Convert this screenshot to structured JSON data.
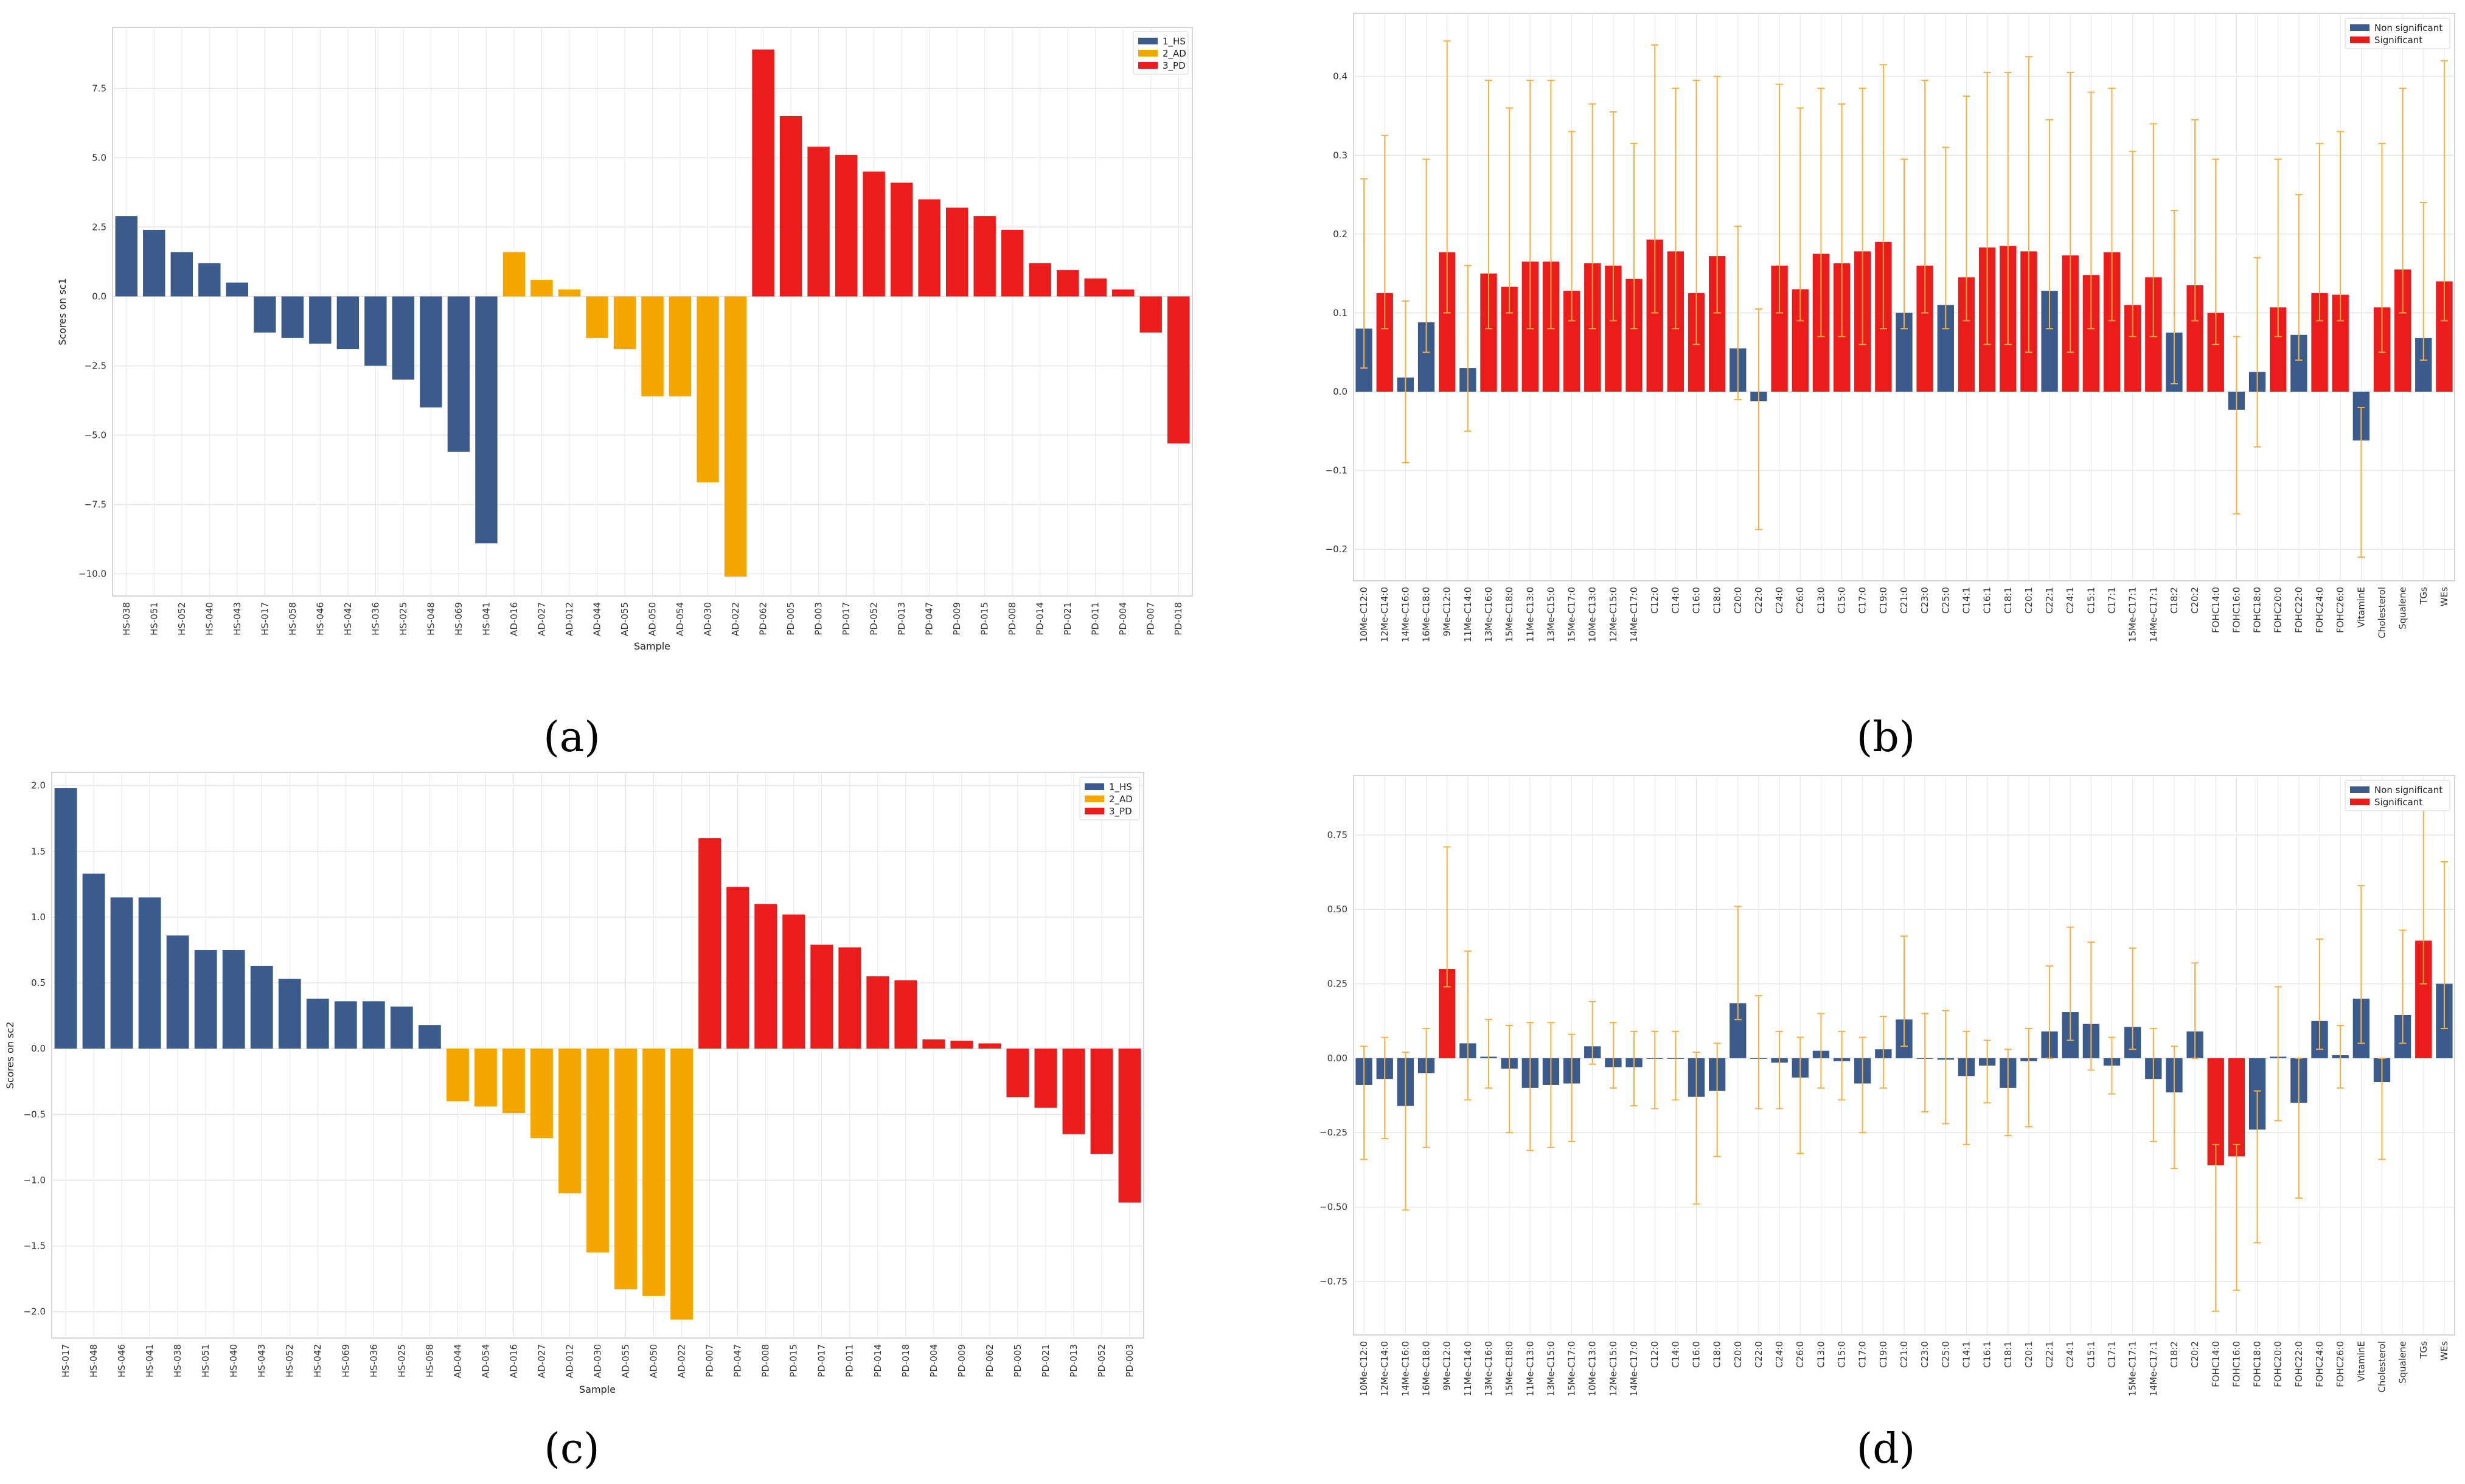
{
  "chart_data": [
    {
      "panel": "a",
      "caption": "(a)",
      "type": "bar",
      "xlabel": "Sample",
      "ylabel": "Scores on sc1",
      "ylim": [
        -10.8,
        9.7
      ],
      "yticks": [
        -10.0,
        -7.5,
        -5.0,
        -2.5,
        0.0,
        2.5,
        5.0,
        7.5
      ],
      "ytick_labels": [
        "−10.0",
        "−7.5",
        "−5.0",
        "−2.5",
        "0.0",
        "2.5",
        "5.0",
        "7.5"
      ],
      "legend": {
        "placement": "top-right",
        "entries": [
          {
            "label": "1_HS",
            "group": "HS"
          },
          {
            "label": "2_AD",
            "group": "AD"
          },
          {
            "label": "3_PD",
            "group": "PD"
          }
        ]
      },
      "categories": [
        "HS-038",
        "HS-051",
        "HS-052",
        "HS-040",
        "HS-043",
        "HS-017",
        "HS-058",
        "HS-046",
        "HS-042",
        "HS-036",
        "HS-025",
        "HS-048",
        "HS-069",
        "HS-041",
        "AD-016",
        "AD-027",
        "AD-012",
        "AD-044",
        "AD-055",
        "AD-050",
        "AD-054",
        "AD-030",
        "AD-022",
        "PD-062",
        "PD-005",
        "PD-003",
        "PD-017",
        "PD-052",
        "PD-013",
        "PD-047",
        "PD-009",
        "PD-015",
        "PD-008",
        "PD-014",
        "PD-021",
        "PD-011",
        "PD-004",
        "PD-007",
        "PD-018"
      ],
      "groups": [
        "HS",
        "HS",
        "HS",
        "HS",
        "HS",
        "HS",
        "HS",
        "HS",
        "HS",
        "HS",
        "HS",
        "HS",
        "HS",
        "HS",
        "AD",
        "AD",
        "AD",
        "AD",
        "AD",
        "AD",
        "AD",
        "AD",
        "AD",
        "PD",
        "PD",
        "PD",
        "PD",
        "PD",
        "PD",
        "PD",
        "PD",
        "PD",
        "PD",
        "PD",
        "PD",
        "PD",
        "PD",
        "PD",
        "PD"
      ],
      "values": [
        2.9,
        2.4,
        1.6,
        1.2,
        0.5,
        -1.3,
        -1.5,
        -1.7,
        -1.9,
        -2.5,
        -3.0,
        -4.0,
        -5.6,
        -8.9,
        1.6,
        0.6,
        0.25,
        -1.5,
        -1.9,
        -3.6,
        -3.6,
        -6.7,
        -10.1,
        8.9,
        6.5,
        5.4,
        5.1,
        4.5,
        4.1,
        3.5,
        3.2,
        2.9,
        2.4,
        1.2,
        0.95,
        0.65,
        0.25,
        -1.3,
        -5.3
      ]
    },
    {
      "panel": "b",
      "caption": "(b)",
      "type": "bar",
      "xlabel": "",
      "ylabel": "",
      "ylim": [
        -0.24,
        0.48
      ],
      "yticks": [
        -0.2,
        -0.1,
        0.0,
        0.1,
        0.2,
        0.3,
        0.4
      ],
      "ytick_labels": [
        "−0.2",
        "−0.1",
        "0.0",
        "0.1",
        "0.2",
        "0.3",
        "0.4"
      ],
      "legend": {
        "placement": "top-right",
        "entries": [
          {
            "label": "Non significant",
            "group": "N"
          },
          {
            "label": "Significant",
            "group": "S"
          }
        ]
      },
      "categories": [
        "10Me-C12:0",
        "12Me-C14:0",
        "14Me-C16:0",
        "16Me-C18:0",
        "9Me-C12:0",
        "11Me-C14:0",
        "13Me-C16:0",
        "15Me-C18:0",
        "11Me-C13:0",
        "13Me-C15:0",
        "15Me-C17:0",
        "10Me-C13:0",
        "12Me-C15:0",
        "14Me-C17:0",
        "C12:0",
        "C14:0",
        "C16:0",
        "C18:0",
        "C20:0",
        "C22:0",
        "C24:0",
        "C26:0",
        "C13:0",
        "C15:0",
        "C17:0",
        "C19:0",
        "C21:0",
        "C23:0",
        "C25:0",
        "C14:1",
        "C16:1",
        "C18:1",
        "C20:1",
        "C22:1",
        "C24:1",
        "C15:1",
        "C17:1",
        "15Me-C17:1",
        "14Me-C17:1",
        "C18:2",
        "C20:2",
        "FOHC14:0",
        "FOHC16:0",
        "FOHC18:0",
        "FOHC20:0",
        "FOHC22:0",
        "FOHC24:0",
        "FOHC26:0",
        "VitaminE",
        "Cholesterol",
        "Squalene",
        "TGs",
        "WEs"
      ],
      "groups": [
        "N",
        "S",
        "N",
        "N",
        "S",
        "N",
        "S",
        "S",
        "S",
        "S",
        "S",
        "S",
        "S",
        "S",
        "S",
        "S",
        "S",
        "S",
        "N",
        "N",
        "S",
        "S",
        "S",
        "S",
        "S",
        "S",
        "N",
        "S",
        "N",
        "S",
        "S",
        "S",
        "S",
        "N",
        "S",
        "S",
        "S",
        "S",
        "S",
        "N",
        "S",
        "S",
        "N",
        "N",
        "S",
        "N",
        "S",
        "S",
        "N",
        "S",
        "S",
        "N",
        "S"
      ],
      "values": [
        0.08,
        0.125,
        0.018,
        0.088,
        0.177,
        0.03,
        0.15,
        0.133,
        0.165,
        0.165,
        0.128,
        0.163,
        0.16,
        0.143,
        0.193,
        0.178,
        0.125,
        0.172,
        0.055,
        -0.012,
        0.16,
        0.13,
        0.175,
        0.163,
        0.178,
        0.19,
        0.1,
        0.16,
        0.11,
        0.145,
        0.183,
        0.185,
        0.178,
        0.128,
        0.173,
        0.148,
        0.177,
        0.11,
        0.145,
        0.075,
        0.135,
        0.1,
        -0.023,
        0.025,
        0.107,
        0.072,
        0.125,
        0.123,
        -0.062,
        0.107,
        0.155,
        0.068,
        0.14
      ],
      "err_low": [
        0.03,
        0.08,
        -0.09,
        0.05,
        0.1,
        -0.05,
        0.08,
        0.1,
        0.08,
        0.08,
        0.09,
        0.08,
        0.09,
        0.08,
        0.1,
        0.08,
        0.06,
        0.1,
        -0.01,
        -0.175,
        0.1,
        0.09,
        0.07,
        0.07,
        0.06,
        0.08,
        0.08,
        0.1,
        0.08,
        0.09,
        0.06,
        0.06,
        0.05,
        0.08,
        0.05,
        0.08,
        0.09,
        0.07,
        0.07,
        0.01,
        0.09,
        0.06,
        -0.155,
        -0.07,
        0.07,
        0.04,
        0.09,
        0.09,
        -0.21,
        0.05,
        0.1,
        0.04,
        0.09
      ],
      "err_high": [
        0.27,
        0.325,
        0.115,
        0.295,
        0.445,
        0.16,
        0.395,
        0.36,
        0.395,
        0.395,
        0.33,
        0.365,
        0.355,
        0.315,
        0.44,
        0.385,
        0.395,
        0.4,
        0.21,
        0.105,
        0.39,
        0.36,
        0.385,
        0.365,
        0.385,
        0.415,
        0.295,
        0.395,
        0.31,
        0.375,
        0.405,
        0.405,
        0.425,
        0.345,
        0.405,
        0.38,
        0.385,
        0.305,
        0.34,
        0.23,
        0.345,
        0.295,
        0.07,
        0.17,
        0.295,
        0.25,
        0.315,
        0.33,
        -0.02,
        0.315,
        0.385,
        0.24,
        0.42
      ]
    },
    {
      "panel": "c",
      "caption": "(c)",
      "type": "bar",
      "xlabel": "Sample",
      "ylabel": "Scores on sc2",
      "ylim": [
        -2.2,
        2.1
      ],
      "yticks": [
        -2.0,
        -1.5,
        -1.0,
        -0.5,
        0.0,
        0.5,
        1.0,
        1.5,
        2.0
      ],
      "ytick_labels": [
        "−2.0",
        "−1.5",
        "−1.0",
        "−0.5",
        "0.0",
        "0.5",
        "1.0",
        "1.5",
        "2.0"
      ],
      "legend": {
        "placement": "top-right",
        "entries": [
          {
            "label": "1_HS",
            "group": "HS"
          },
          {
            "label": "2_AD",
            "group": "AD"
          },
          {
            "label": "3_PD",
            "group": "PD"
          }
        ]
      },
      "categories": [
        "HS-017",
        "HS-048",
        "HS-046",
        "HS-041",
        "HS-038",
        "HS-051",
        "HS-040",
        "HS-043",
        "HS-052",
        "HS-042",
        "HS-069",
        "HS-036",
        "HS-025",
        "HS-058",
        "AD-044",
        "AD-054",
        "AD-016",
        "AD-027",
        "AD-012",
        "AD-030",
        "AD-055",
        "AD-050",
        "AD-022",
        "PD-007",
        "PD-047",
        "PD-008",
        "PD-015",
        "PD-017",
        "PD-011",
        "PD-014",
        "PD-018",
        "PD-004",
        "PD-009",
        "PD-062",
        "PD-005",
        "PD-021",
        "PD-013",
        "PD-052",
        "PD-003"
      ],
      "groups": [
        "HS",
        "HS",
        "HS",
        "HS",
        "HS",
        "HS",
        "HS",
        "HS",
        "HS",
        "HS",
        "HS",
        "HS",
        "HS",
        "HS",
        "AD",
        "AD",
        "AD",
        "AD",
        "AD",
        "AD",
        "AD",
        "AD",
        "AD",
        "PD",
        "PD",
        "PD",
        "PD",
        "PD",
        "PD",
        "PD",
        "PD",
        "PD",
        "PD",
        "PD",
        "PD",
        "PD",
        "PD",
        "PD",
        "PD"
      ],
      "values": [
        1.98,
        1.33,
        1.15,
        1.15,
        0.86,
        0.75,
        0.75,
        0.63,
        0.53,
        0.38,
        0.36,
        0.36,
        0.32,
        0.18,
        -0.4,
        -0.44,
        -0.49,
        -0.68,
        -1.1,
        -1.55,
        -1.83,
        -1.88,
        -2.06,
        1.6,
        1.23,
        1.1,
        1.02,
        0.79,
        0.77,
        0.55,
        0.52,
        0.07,
        0.06,
        0.04,
        -0.37,
        -0.45,
        -0.65,
        -0.8,
        -1.17
      ]
    },
    {
      "panel": "d",
      "caption": "(d)",
      "type": "bar",
      "xlabel": "",
      "ylabel": "",
      "ylim": [
        -0.93,
        0.95
      ],
      "yticks": [
        -0.75,
        -0.5,
        -0.25,
        0.0,
        0.25,
        0.5,
        0.75
      ],
      "ytick_labels": [
        "−0.75",
        "−0.50",
        "−0.25",
        "0.00",
        "0.25",
        "0.50",
        "0.75"
      ],
      "legend": {
        "placement": "top-right",
        "entries": [
          {
            "label": "Non significant",
            "group": "N"
          },
          {
            "label": "Significant",
            "group": "S"
          }
        ]
      },
      "categories": [
        "10Me-C12:0",
        "12Me-C14:0",
        "14Me-C16:0",
        "16Me-C18:0",
        "9Me-C12:0",
        "11Me-C14:0",
        "13Me-C16:0",
        "15Me-C18:0",
        "11Me-C13:0",
        "13Me-C15:0",
        "15Me-C17:0",
        "10Me-C13:0",
        "12Me-C15:0",
        "14Me-C17:0",
        "C12:0",
        "C14:0",
        "C16:0",
        "C18:0",
        "C20:0",
        "C22:0",
        "C24:0",
        "C26:0",
        "C13:0",
        "C15:0",
        "C17:0",
        "C19:0",
        "C21:0",
        "C23:0",
        "C25:0",
        "C14:1",
        "C16:1",
        "C18:1",
        "C20:1",
        "C22:1",
        "C24:1",
        "C15:1",
        "C17:1",
        "15Me-C17:1",
        "14Me-C17:1",
        "C18:2",
        "C20:2",
        "FOHC14:0",
        "FOHC16:0",
        "FOHC18:0",
        "FOHC20:0",
        "FOHC22:0",
        "FOHC24:0",
        "FOHC26:0",
        "VitaminE",
        "Cholesterol",
        "Squalene",
        "TGs",
        "WEs"
      ],
      "groups": [
        "N",
        "N",
        "N",
        "N",
        "S",
        "N",
        "N",
        "N",
        "N",
        "N",
        "N",
        "N",
        "N",
        "N",
        "N",
        "N",
        "N",
        "N",
        "N",
        "N",
        "N",
        "N",
        "N",
        "N",
        "N",
        "N",
        "N",
        "N",
        "N",
        "N",
        "N",
        "N",
        "N",
        "N",
        "N",
        "N",
        "N",
        "N",
        "N",
        "N",
        "N",
        "S",
        "S",
        "N",
        "N",
        "N",
        "N",
        "N",
        "N",
        "N",
        "N",
        "S",
        "N"
      ],
      "values": [
        -0.09,
        -0.07,
        -0.16,
        -0.05,
        0.3,
        0.05,
        0.005,
        -0.035,
        -0.1,
        -0.09,
        -0.085,
        0.04,
        -0.03,
        -0.03,
        0.0,
        0.0,
        -0.13,
        -0.11,
        0.185,
        0.0,
        -0.015,
        -0.065,
        0.025,
        -0.01,
        -0.085,
        0.03,
        0.13,
        0.0,
        -0.005,
        -0.06,
        -0.025,
        -0.1,
        -0.01,
        0.09,
        0.155,
        0.115,
        -0.025,
        0.105,
        -0.07,
        -0.115,
        0.09,
        -0.36,
        -0.33,
        -0.24,
        0.005,
        -0.15,
        0.125,
        0.01,
        0.2,
        -0.08,
        0.145,
        0.395,
        0.25
      ],
      "err_low": [
        -0.34,
        -0.27,
        -0.51,
        -0.3,
        0.24,
        -0.14,
        -0.1,
        -0.25,
        -0.31,
        -0.3,
        -0.28,
        -0.02,
        -0.1,
        -0.16,
        -0.17,
        -0.14,
        -0.49,
        -0.33,
        0.13,
        -0.17,
        -0.17,
        -0.32,
        -0.1,
        -0.14,
        -0.25,
        -0.1,
        0.04,
        -0.18,
        -0.22,
        -0.29,
        -0.15,
        -0.26,
        -0.23,
        0.0,
        0.06,
        -0.04,
        -0.12,
        0.03,
        -0.28,
        -0.37,
        0.0,
        -0.85,
        -0.78,
        -0.62,
        -0.21,
        -0.47,
        0.03,
        -0.1,
        0.05,
        -0.34,
        0.05,
        0.25,
        0.1
      ],
      "err_high": [
        0.04,
        0.07,
        0.02,
        0.1,
        0.71,
        0.36,
        0.13,
        0.11,
        0.12,
        0.12,
        0.08,
        0.19,
        0.12,
        0.09,
        0.09,
        0.09,
        0.02,
        0.05,
        0.51,
        0.21,
        0.09,
        0.07,
        0.15,
        0.09,
        0.07,
        0.14,
        0.41,
        0.15,
        0.16,
        0.09,
        0.06,
        0.03,
        0.1,
        0.31,
        0.44,
        0.39,
        0.07,
        0.37,
        0.1,
        0.04,
        0.32,
        -0.29,
        -0.29,
        -0.11,
        0.24,
        0.0,
        0.4,
        0.11,
        0.58,
        0.0,
        0.43,
        0.93,
        0.66
      ]
    }
  ],
  "colors": {
    "HS": "#3a5b8c",
    "AD": "#f3a700",
    "PD": "#ea1c1c",
    "N": "#3a5b8c",
    "S": "#ea1c1c",
    "errorbar": "#f5b042",
    "grid": "#e6e6e6",
    "frame": "#c8c8c8"
  }
}
